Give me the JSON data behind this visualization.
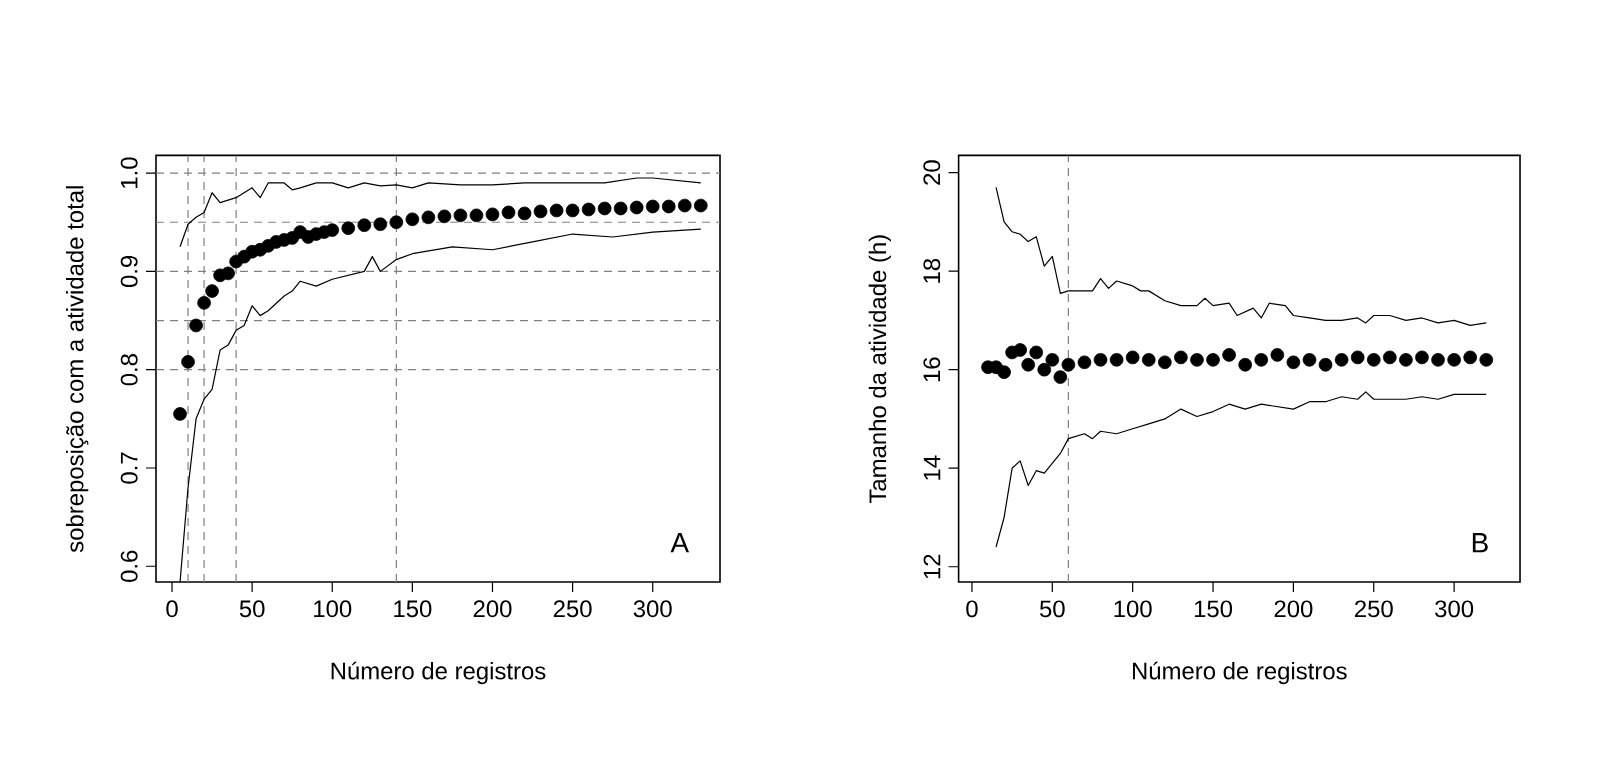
{
  "chart_data": [
    {
      "type": "scatter",
      "xlabel": "Número de registros",
      "ylabel": "sobreposição com a atividade total",
      "xlim": [
        -10,
        342
      ],
      "ylim": [
        0.584,
        1.018
      ],
      "xticks": [
        0,
        50,
        100,
        150,
        200,
        250,
        300
      ],
      "yticks": [
        0.6,
        0.7,
        0.8,
        0.9,
        {
          "value": 1.0,
          "label": "1.0"
        }
      ],
      "grid": false,
      "annotations": [
        "A"
      ],
      "ref_lines": [
        {
          "axis": "y",
          "value": 0.8,
          "color": "#808080",
          "line_style": "dashed"
        },
        {
          "axis": "y",
          "value": 0.85,
          "color": "#808080",
          "line_style": "dashed"
        },
        {
          "axis": "y",
          "value": 0.9,
          "color": "#808080",
          "line_style": "dashed"
        },
        {
          "axis": "y",
          "value": 0.95,
          "color": "#808080",
          "line_style": "dashed"
        },
        {
          "axis": "y",
          "value": 1.0,
          "color": "#808080",
          "line_style": "dashed"
        },
        {
          "axis": "x",
          "value": 10,
          "color": "#808080",
          "line_style": "dashed"
        },
        {
          "axis": "x",
          "value": 20,
          "color": "#808080",
          "line_style": "dashed"
        },
        {
          "axis": "x",
          "value": 40,
          "color": "#808080",
          "line_style": "dashed"
        },
        {
          "axis": "x",
          "value": 140,
          "color": "#808080",
          "line_style": "dashed"
        }
      ],
      "series": [
        {
          "marker": "circle",
          "color": "#000000",
          "x": [
            5,
            10,
            15,
            20,
            25,
            30,
            35,
            40,
            45,
            50,
            55,
            60,
            65,
            70,
            75,
            80,
            85,
            90,
            95,
            100,
            110,
            120,
            130,
            140,
            150,
            160,
            170,
            180,
            190,
            200,
            210,
            220,
            230,
            240,
            250,
            260,
            270,
            280,
            290,
            300,
            310,
            320,
            330
          ],
          "values": [
            0.755,
            0.808,
            0.845,
            0.868,
            0.88,
            0.896,
            0.898,
            0.91,
            0.915,
            0.92,
            0.922,
            0.926,
            0.93,
            0.932,
            0.934,
            0.94,
            0.935,
            0.938,
            0.94,
            0.942,
            0.944,
            0.947,
            0.948,
            0.95,
            0.953,
            0.955,
            0.956,
            0.957,
            0.957,
            0.958,
            0.96,
            0.959,
            0.961,
            0.962,
            0.962,
            0.963,
            0.964,
            0.964,
            0.965,
            0.966,
            0.966,
            0.967,
            0.967
          ]
        },
        {
          "type": "line",
          "marker": "none",
          "color": "#000000",
          "x": [
            5,
            10,
            15,
            20,
            25,
            30,
            40,
            50,
            55,
            60,
            70,
            75,
            80,
            90,
            100,
            110,
            120,
            130,
            140,
            150,
            160,
            180,
            200,
            220,
            250,
            270,
            290,
            300,
            330
          ],
          "values": [
            0.925,
            0.948,
            0.955,
            0.96,
            0.98,
            0.97,
            0.975,
            0.985,
            0.975,
            0.99,
            0.99,
            0.983,
            0.985,
            0.99,
            0.99,
            0.985,
            0.99,
            0.987,
            0.988,
            0.985,
            0.99,
            0.988,
            0.988,
            0.99,
            0.99,
            0.99,
            0.995,
            0.995,
            0.99
          ]
        },
        {
          "type": "line",
          "marker": "none",
          "color": "#000000",
          "x": [
            5,
            10,
            15,
            20,
            25,
            30,
            35,
            40,
            45,
            50,
            55,
            60,
            70,
            75,
            80,
            90,
            100,
            120,
            125,
            130,
            140,
            150,
            175,
            200,
            225,
            250,
            275,
            300,
            330
          ],
          "values": [
            0.584,
            0.68,
            0.75,
            0.77,
            0.78,
            0.82,
            0.825,
            0.84,
            0.845,
            0.865,
            0.855,
            0.86,
            0.875,
            0.88,
            0.89,
            0.885,
            0.892,
            0.9,
            0.915,
            0.9,
            0.912,
            0.918,
            0.925,
            0.922,
            0.93,
            0.938,
            0.935,
            0.94,
            0.943
          ]
        }
      ]
    },
    {
      "type": "scatter",
      "xlabel": "Número de registros",
      "ylabel": "Tamanho da atividade (h)",
      "xlim": [
        -8.3,
        341
      ],
      "ylim": [
        11.69,
        20.35
      ],
      "xticks": [
        0,
        50,
        100,
        150,
        200,
        250,
        300
      ],
      "yticks": [
        12,
        14,
        16,
        18,
        20
      ],
      "grid": false,
      "annotations": [
        "B"
      ],
      "ref_lines": [
        {
          "axis": "x",
          "value": 60,
          "color": "#808080",
          "line_style": "dashed"
        }
      ],
      "series": [
        {
          "marker": "circle",
          "color": "#000000",
          "x": [
            10,
            15,
            20,
            25,
            30,
            35,
            40,
            45,
            50,
            55,
            60,
            70,
            80,
            90,
            100,
            110,
            120,
            130,
            140,
            150,
            160,
            170,
            180,
            190,
            200,
            210,
            220,
            230,
            240,
            250,
            260,
            270,
            280,
            290,
            300,
            310,
            320
          ],
          "values": [
            16.05,
            16.05,
            15.95,
            16.35,
            16.4,
            16.1,
            16.35,
            16.0,
            16.2,
            15.85,
            16.1,
            16.15,
            16.2,
            16.2,
            16.25,
            16.2,
            16.15,
            16.25,
            16.2,
            16.2,
            16.3,
            16.1,
            16.2,
            16.3,
            16.15,
            16.2,
            16.1,
            16.2,
            16.25,
            16.2,
            16.25,
            16.2,
            16.25,
            16.2,
            16.2,
            16.25,
            16.2
          ]
        },
        {
          "type": "line",
          "marker": "none",
          "color": "#000000",
          "x": [
            15,
            20,
            25,
            30,
            35,
            40,
            45,
            50,
            55,
            60,
            70,
            75,
            80,
            85,
            90,
            100,
            105,
            110,
            120,
            130,
            140,
            145,
            150,
            160,
            165,
            175,
            180,
            185,
            195,
            200,
            210,
            220,
            230,
            240,
            245,
            250,
            260,
            270,
            280,
            290,
            300,
            310,
            320
          ],
          "values": [
            19.7,
            19.0,
            18.8,
            18.75,
            18.6,
            18.7,
            18.1,
            18.3,
            17.55,
            17.6,
            17.6,
            17.6,
            17.85,
            17.65,
            17.8,
            17.7,
            17.6,
            17.6,
            17.4,
            17.3,
            17.3,
            17.45,
            17.3,
            17.35,
            17.1,
            17.25,
            17.05,
            17.35,
            17.3,
            17.1,
            17.05,
            17.0,
            17.0,
            17.05,
            16.95,
            17.1,
            17.1,
            17.0,
            17.05,
            16.95,
            17.0,
            16.9,
            16.95
          ]
        },
        {
          "type": "line",
          "marker": "none",
          "color": "#000000",
          "x": [
            15,
            20,
            25,
            30,
            35,
            40,
            45,
            50,
            55,
            60,
            70,
            75,
            80,
            90,
            100,
            110,
            120,
            130,
            140,
            150,
            160,
            170,
            180,
            200,
            210,
            220,
            230,
            240,
            245,
            250,
            270,
            280,
            290,
            300,
            320
          ],
          "values": [
            12.4,
            13.0,
            14.0,
            14.15,
            13.65,
            13.95,
            13.9,
            14.1,
            14.3,
            14.6,
            14.7,
            14.6,
            14.75,
            14.7,
            14.8,
            14.9,
            15.0,
            15.2,
            15.05,
            15.15,
            15.3,
            15.2,
            15.3,
            15.2,
            15.35,
            15.35,
            15.45,
            15.4,
            15.55,
            15.4,
            15.4,
            15.45,
            15.4,
            15.5,
            15.5
          ]
        }
      ]
    }
  ]
}
